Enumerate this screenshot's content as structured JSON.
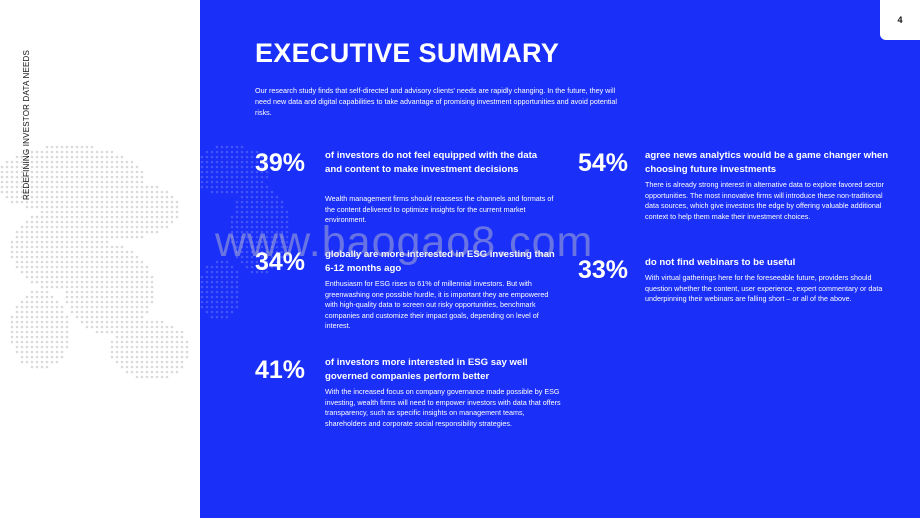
{
  "side_label": "REDEFINING INVESTOR DATA NEEDS",
  "page_number": "4",
  "title": "EXECUTIVE SUMMARY",
  "intro": "Our research study finds that self-directed and advisory clients' needs are rapidly changing. In the future, they will need new data and digital capabilities to take advantage of promising investment opportunities and avoid potential risks.",
  "stats": [
    {
      "percent": "39%",
      "headline": "of investors do not feel equipped with the data and content to make investment decisions",
      "body": "Wealth management firms should reassess the channels and formats of the content delivered to optimize insights for the current market environment."
    },
    {
      "percent": "34%",
      "headline": "globally are more interested in ESG investing than 6-12 months ago",
      "body": "Enthusiasm for ESG rises to 61% of millennial investors. But with greenwashing one possible hurdle, it is important they are empowered with high-quality data to screen out risky opportunities, benchmark companies and customize their impact goals, depending on level of interest."
    },
    {
      "percent": "41%",
      "headline": "of investors more interested in ESG say well governed companies perform better",
      "body": "With the increased focus on company governance made possible by ESG investing, wealth firms will need to empower investors with data that offers transparency, such as specific insights on management teams, shareholders and corporate social responsibility strategies."
    },
    {
      "percent": "54%",
      "headline": "agree news analytics would be a game changer when choosing future investments",
      "body": "There is already strong interest in alternative data to explore favored sector opportunities. The most innovative firms will introduce these non-traditional data sources, which give investors the edge by offering valuable additional context to help them make their investment choices."
    },
    {
      "percent": "33%",
      "headline": "do not find webinars to be useful",
      "body": "With virtual gatherings here for the foreseeable future, providers should question whether the content, user experience, expert commentary or data underpinning their webinars are falling short – or all of the above."
    }
  ],
  "watermark": "www.baogao8.com",
  "colors": {
    "background_blue": "#1a2ff7",
    "text": "#ffffff",
    "dots": "#d6d6d6"
  }
}
